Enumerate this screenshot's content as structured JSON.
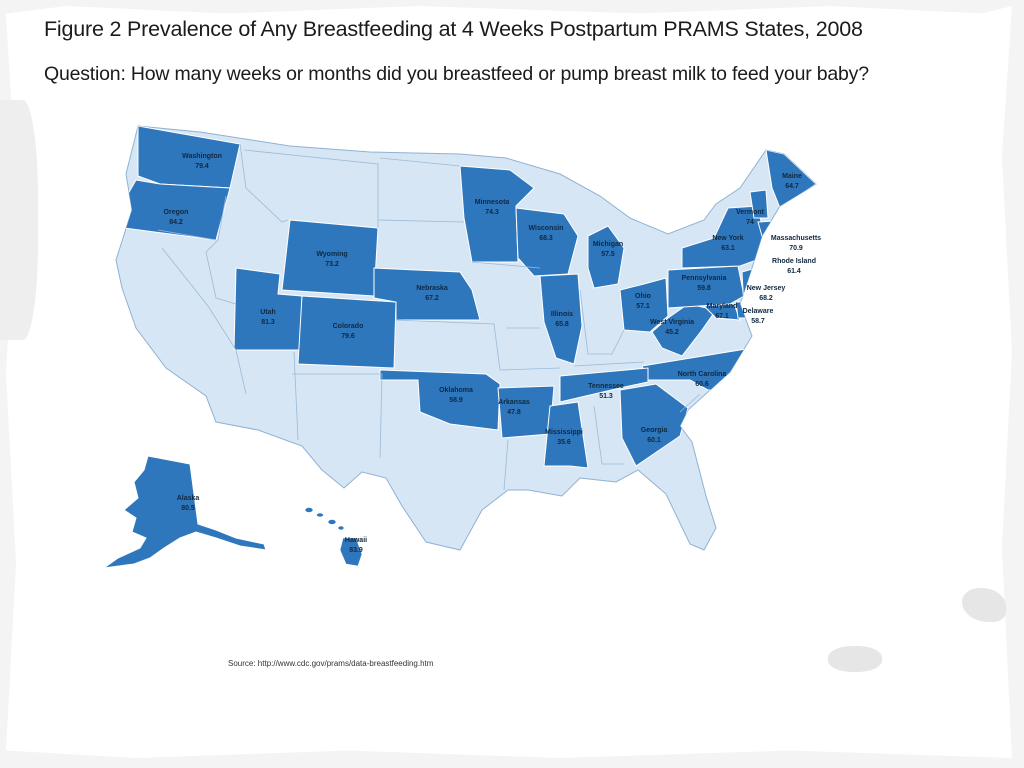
{
  "title": "Figure 2 Prevalence of Any Breastfeeding at 4 Weeks Postpartum PRAMS States, 2008",
  "subtitle": "Question: How many weeks or months did you breastfeed or pump breast milk to feed your baby?",
  "source": "Source: http://www.cdc.gov/prams/data-breastfeeding.htm",
  "colors": {
    "prams_state": "#2e77bd",
    "other_state": "#d6e6f4",
    "border": "#ffffff",
    "label": "#102840"
  },
  "states": [
    {
      "name": "Washington",
      "value": "79.4"
    },
    {
      "name": "Oregon",
      "value": "84.2"
    },
    {
      "name": "Wyoming",
      "value": "73.2"
    },
    {
      "name": "Utah",
      "value": "81.3"
    },
    {
      "name": "Colorado",
      "value": "79.6"
    },
    {
      "name": "Nebraska",
      "value": "67.2"
    },
    {
      "name": "Minnesota",
      "value": "74.3"
    },
    {
      "name": "Wisconsin",
      "value": "68.3"
    },
    {
      "name": "Michigan",
      "value": "57.5"
    },
    {
      "name": "Illinois",
      "value": "65.8"
    },
    {
      "name": "Ohio",
      "value": "57.1"
    },
    {
      "name": "West Virginia",
      "value": "45.2"
    },
    {
      "name": "Pennsylvania",
      "value": "59.8"
    },
    {
      "name": "New York",
      "value": "63.1"
    },
    {
      "name": "Vermont",
      "value": "74"
    },
    {
      "name": "Maine",
      "value": "64.7"
    },
    {
      "name": "Massachusetts",
      "value": "70.9"
    },
    {
      "name": "Rhode Island",
      "value": "61.4"
    },
    {
      "name": "New Jersey",
      "value": "68.2"
    },
    {
      "name": "Maryland",
      "value": "67.1"
    },
    {
      "name": "Delaware",
      "value": "58.7"
    },
    {
      "name": "North Carolina",
      "value": "60.6"
    },
    {
      "name": "Tennessee",
      "value": "51.3"
    },
    {
      "name": "Georgia",
      "value": "60.1"
    },
    {
      "name": "Oklahoma",
      "value": "58.9"
    },
    {
      "name": "Arkansas",
      "value": "47.8"
    },
    {
      "name": "Mississippi",
      "value": "35.6"
    },
    {
      "name": "Alaska",
      "value": "80.5"
    },
    {
      "name": "Hawaii",
      "value": "83.9"
    }
  ]
}
